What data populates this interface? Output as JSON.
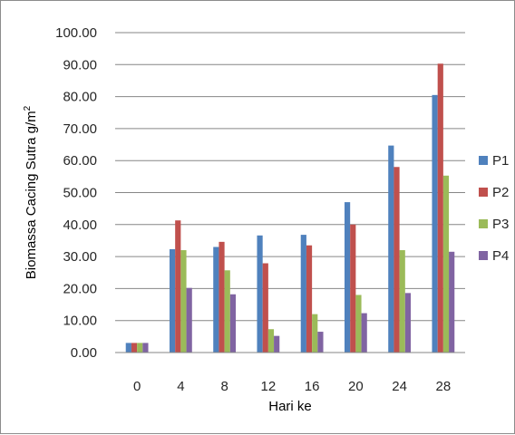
{
  "chart_data": {
    "type": "bar",
    "title": "",
    "xlabel": "Hari ke",
    "ylabel_prefix": "Biomassa Cacing Sutra g/m",
    "ylabel_superscript": "2",
    "categories": [
      "0",
      "4",
      "8",
      "12",
      "16",
      "20",
      "24",
      "28"
    ],
    "ylim": [
      0,
      100
    ],
    "yticks": [
      "0.00",
      "10.00",
      "20.00",
      "30.00",
      "40.00",
      "50.00",
      "60.00",
      "70.00",
      "80.00",
      "90.00",
      "100.00"
    ],
    "grid": true,
    "legend_position": "right",
    "series": [
      {
        "name": "P1",
        "color": "#4f81bd",
        "values": [
          3.0,
          32.3,
          33.0,
          36.6,
          36.8,
          47.0,
          64.7,
          80.5
        ]
      },
      {
        "name": "P2",
        "color": "#c0504d",
        "values": [
          3.0,
          41.3,
          34.6,
          27.9,
          33.5,
          40.0,
          58.0,
          90.3
        ]
      },
      {
        "name": "P3",
        "color": "#9bbb59",
        "values": [
          3.0,
          32.0,
          25.7,
          7.3,
          12.0,
          18.0,
          32.0,
          55.3
        ]
      },
      {
        "name": "P4",
        "color": "#8064a2",
        "values": [
          3.0,
          20.2,
          18.2,
          5.2,
          6.5,
          12.3,
          18.6,
          31.5
        ]
      }
    ]
  }
}
